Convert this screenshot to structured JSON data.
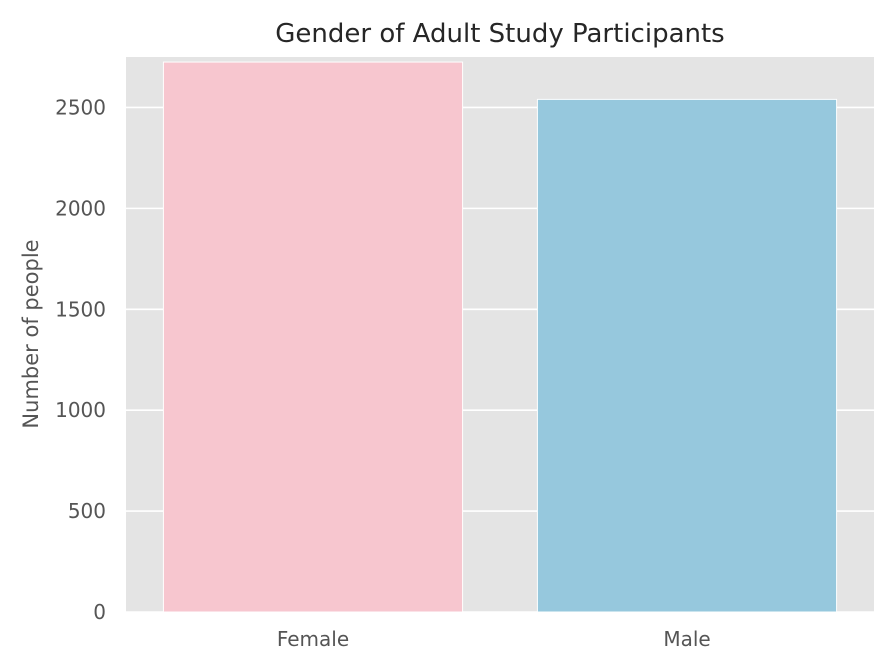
{
  "chart_data": {
    "type": "bar",
    "title": "Gender of Adult Study Participants",
    "xlabel": "",
    "ylabel": "Number of people",
    "categories": [
      "Female",
      "Male"
    ],
    "values": [
      2725,
      2540
    ],
    "bar_colors": [
      "#f7c6cf",
      "#96c8dd"
    ],
    "ylim": [
      0,
      2750
    ],
    "yticks": [
      0,
      500,
      1000,
      1500,
      2000,
      2500
    ],
    "grid": true,
    "grid_color": "#ffffff",
    "plot_background": "#e4e4e4"
  }
}
